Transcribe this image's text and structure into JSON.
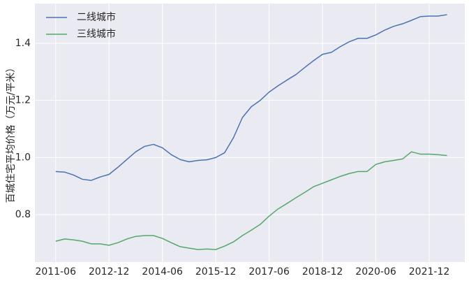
{
  "chart_data": {
    "type": "line",
    "y_label": "百城住宅平均价格（万元/平米）",
    "x": [
      "2011-06",
      "2011-09",
      "2011-12",
      "2012-03",
      "2012-06",
      "2012-09",
      "2012-12",
      "2013-03",
      "2013-06",
      "2013-09",
      "2013-12",
      "2014-03",
      "2014-06",
      "2014-09",
      "2014-12",
      "2015-03",
      "2015-06",
      "2015-09",
      "2015-12",
      "2016-03",
      "2016-06",
      "2016-09",
      "2016-12",
      "2017-03",
      "2017-06",
      "2017-09",
      "2017-12",
      "2018-03",
      "2018-06",
      "2018-09",
      "2018-12",
      "2019-03",
      "2019-06",
      "2019-09",
      "2019-12",
      "2020-03",
      "2020-06",
      "2020-09",
      "2020-12",
      "2021-03",
      "2021-06",
      "2021-09",
      "2021-12",
      "2022-03",
      "2022-06"
    ],
    "series": [
      {
        "name": "二线城市",
        "color": "#4c72b0",
        "values": [
          0.951,
          0.949,
          0.939,
          0.924,
          0.92,
          0.932,
          0.941,
          0.966,
          0.993,
          1.02,
          1.039,
          1.046,
          1.034,
          1.01,
          0.993,
          0.985,
          0.99,
          0.992,
          1.0,
          1.017,
          1.07,
          1.14,
          1.178,
          1.2,
          1.229,
          1.251,
          1.271,
          1.29,
          1.315,
          1.339,
          1.361,
          1.368,
          1.388,
          1.405,
          1.417,
          1.417,
          1.429,
          1.446,
          1.459,
          1.468,
          1.48,
          1.493,
          1.495,
          1.495,
          1.5
        ]
      },
      {
        "name": "三线城市",
        "color": "#55a868",
        "values": [
          0.707,
          0.715,
          0.712,
          0.707,
          0.698,
          0.698,
          0.693,
          0.702,
          0.715,
          0.724,
          0.727,
          0.727,
          0.717,
          0.702,
          0.688,
          0.683,
          0.678,
          0.68,
          0.678,
          0.69,
          0.705,
          0.727,
          0.746,
          0.766,
          0.795,
          0.82,
          0.839,
          0.859,
          0.878,
          0.898,
          0.91,
          0.922,
          0.934,
          0.944,
          0.951,
          0.951,
          0.976,
          0.985,
          0.99,
          0.995,
          1.02,
          1.012,
          1.012,
          1.01,
          1.007
        ]
      }
    ],
    "xlim": [
      "2010-11",
      "2022-12"
    ],
    "xticks": [
      "2011-06",
      "2012-12",
      "2014-06",
      "2015-12",
      "2017-06",
      "2018-12",
      "2020-06",
      "2021-12"
    ],
    "ylim": [
      0.634,
      1.539
    ],
    "yticks": [
      0.8,
      {
        "value": 1.0,
        "label": "1.0"
      },
      1.2,
      1.4
    ],
    "grid": true,
    "legend_position": "upper-left"
  }
}
